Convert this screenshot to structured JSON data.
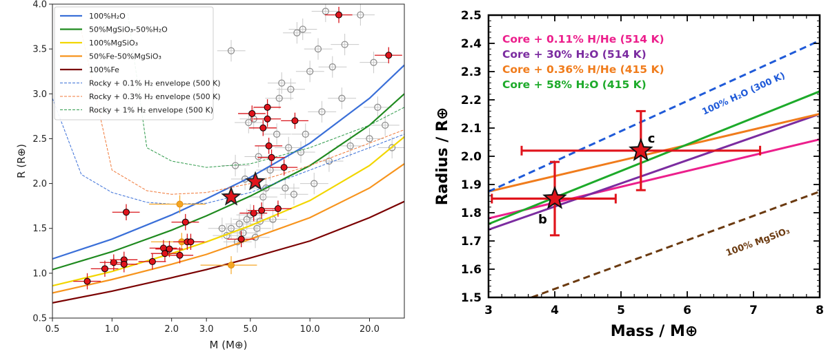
{
  "chart_data": [
    {
      "type": "scatter",
      "xscale": "log",
      "xlim": [
        0.5,
        30
      ],
      "ylim": [
        0.5,
        4.0
      ],
      "xlabel": "M (M⊕)",
      "ylabel": "R (R⊕)",
      "xticks": [
        0.5,
        1.0,
        2.0,
        3.0,
        5.0,
        10.0,
        20.0
      ],
      "xtick_labels": [
        "0.5",
        "1.0",
        "2.0",
        "3.0",
        "5.0",
        "10.0",
        "20.0"
      ],
      "yticks": [
        0.5,
        1.0,
        1.5,
        2.0,
        2.5,
        3.0,
        3.5,
        4.0
      ],
      "ytick_labels": [
        "0.5",
        "1.0",
        "1.5",
        "2.0",
        "2.5",
        "3.0",
        "3.5",
        "4.0"
      ],
      "legend_position": "top-left",
      "models": [
        {
          "name": "100%H₂O",
          "color": "#3a6fd8",
          "style": "solid",
          "x": [
            0.5,
            1,
            2,
            3,
            5,
            10,
            20,
            30
          ],
          "y": [
            1.16,
            1.38,
            1.65,
            1.83,
            2.07,
            2.45,
            2.95,
            3.32
          ]
        },
        {
          "name": "50%MgSiO₃-50%H₂O",
          "color": "#1f8a1f",
          "style": "solid",
          "x": [
            0.5,
            1,
            2,
            3,
            5,
            10,
            20,
            30
          ],
          "y": [
            1.04,
            1.24,
            1.48,
            1.64,
            1.86,
            2.2,
            2.65,
            3.0
          ]
        },
        {
          "name": "100%MgSiO₃",
          "color": "#f2d600",
          "style": "solid",
          "x": [
            0.5,
            1,
            2,
            3,
            5,
            10,
            20,
            30
          ],
          "y": [
            0.86,
            1.02,
            1.22,
            1.35,
            1.53,
            1.81,
            2.2,
            2.52
          ]
        },
        {
          "name": "50%Fe-50%MgSiO₃",
          "color": "#f7941d",
          "style": "solid",
          "x": [
            0.5,
            1,
            2,
            3,
            5,
            10,
            20,
            30
          ],
          "y": [
            0.78,
            0.93,
            1.1,
            1.21,
            1.38,
            1.62,
            1.95,
            2.22
          ]
        },
        {
          "name": "100%Fe",
          "color": "#7a0000",
          "style": "solid",
          "x": [
            0.5,
            1,
            2,
            3,
            5,
            10,
            20,
            30
          ],
          "y": [
            0.67,
            0.8,
            0.95,
            1.04,
            1.17,
            1.36,
            1.62,
            1.8
          ]
        },
        {
          "name": "Rocky + 0.1% H₂ envelope (500 K)",
          "color": "#3a6fd8",
          "style": "dashed",
          "x": [
            0.5,
            0.7,
            1.0,
            1.5,
            2.0,
            3.0,
            5.0,
            10,
            20,
            30
          ],
          "y": [
            2.95,
            2.1,
            1.9,
            1.79,
            1.77,
            1.78,
            1.9,
            2.15,
            2.4,
            2.55
          ]
        },
        {
          "name": "Rocky + 0.3% H₂ envelope (500 K)",
          "color": "#f07838",
          "style": "dashed",
          "x": [
            0.7,
            1.0,
            1.5,
            2.0,
            3.0,
            5.0,
            10,
            20,
            30
          ],
          "y": [
            3.7,
            2.15,
            1.92,
            1.88,
            1.9,
            2.0,
            2.2,
            2.45,
            2.6
          ]
        },
        {
          "name": "Rocky + 1% H₂ envelope (500 K)",
          "color": "#2e9a4a",
          "style": "dashed",
          "x": [
            1.2,
            1.5,
            2.0,
            3.0,
            5.0,
            10,
            20,
            30
          ],
          "y": [
            3.9,
            2.4,
            2.25,
            2.18,
            2.22,
            2.4,
            2.65,
            2.85
          ]
        }
      ],
      "planets_red": [
        {
          "m": 0.75,
          "r": 0.91
        },
        {
          "m": 0.92,
          "r": 1.05
        },
        {
          "m": 1.02,
          "r": 1.12
        },
        {
          "m": 1.15,
          "r": 1.15
        },
        {
          "m": 1.15,
          "r": 1.1
        },
        {
          "m": 1.18,
          "r": 1.68
        },
        {
          "m": 1.6,
          "r": 1.13
        },
        {
          "m": 1.82,
          "r": 1.28
        },
        {
          "m": 1.85,
          "r": 1.22
        },
        {
          "m": 1.95,
          "r": 1.27
        },
        {
          "m": 2.2,
          "r": 1.2
        },
        {
          "m": 2.35,
          "r": 1.57
        },
        {
          "m": 2.4,
          "r": 1.35
        },
        {
          "m": 2.5,
          "r": 1.35
        },
        {
          "m": 4.5,
          "r": 1.38
        },
        {
          "m": 5.1,
          "r": 2.78
        },
        {
          "m": 5.2,
          "r": 1.67
        },
        {
          "m": 5.7,
          "r": 1.7
        },
        {
          "m": 5.8,
          "r": 2.62
        },
        {
          "m": 6.1,
          "r": 2.85
        },
        {
          "m": 6.1,
          "r": 2.72
        },
        {
          "m": 6.2,
          "r": 2.42
        },
        {
          "m": 6.4,
          "r": 2.29
        },
        {
          "m": 6.9,
          "r": 1.72
        },
        {
          "m": 7.4,
          "r": 2.18
        },
        {
          "m": 8.4,
          "r": 2.7
        },
        {
          "m": 14.0,
          "r": 3.88
        },
        {
          "m": 25.0,
          "r": 3.43
        }
      ],
      "planets_orange": [
        {
          "m": 2.2,
          "r": 1.77
        },
        {
          "m": 2.25,
          "r": 1.35
        },
        {
          "m": 4.0,
          "r": 1.09
        }
      ],
      "planets_grey": [
        {
          "m": 4.0,
          "r": 3.48
        },
        {
          "m": 4.0,
          "r": 1.5
        },
        {
          "m": 4.2,
          "r": 2.2
        },
        {
          "m": 4.4,
          "r": 1.55
        },
        {
          "m": 4.6,
          "r": 1.45
        },
        {
          "m": 4.7,
          "r": 2.05
        },
        {
          "m": 4.8,
          "r": 1.6
        },
        {
          "m": 4.9,
          "r": 2.68
        },
        {
          "m": 5.0,
          "r": 1.65
        },
        {
          "m": 5.2,
          "r": 2.72
        },
        {
          "m": 5.4,
          "r": 1.5
        },
        {
          "m": 5.5,
          "r": 2.3
        },
        {
          "m": 5.6,
          "r": 1.58
        },
        {
          "m": 5.8,
          "r": 1.85
        },
        {
          "m": 6.0,
          "r": 1.95
        },
        {
          "m": 6.3,
          "r": 2.15
        },
        {
          "m": 6.5,
          "r": 1.6
        },
        {
          "m": 6.8,
          "r": 2.55
        },
        {
          "m": 7.0,
          "r": 2.95
        },
        {
          "m": 7.2,
          "r": 3.12
        },
        {
          "m": 7.5,
          "r": 1.95
        },
        {
          "m": 7.8,
          "r": 2.4
        },
        {
          "m": 8.0,
          "r": 3.05
        },
        {
          "m": 8.3,
          "r": 1.88
        },
        {
          "m": 8.6,
          "r": 3.68
        },
        {
          "m": 9.0,
          "r": 2.35
        },
        {
          "m": 9.2,
          "r": 3.72
        },
        {
          "m": 9.5,
          "r": 2.55
        },
        {
          "m": 10.0,
          "r": 3.25
        },
        {
          "m": 10.5,
          "r": 2.0
        },
        {
          "m": 11.0,
          "r": 3.5
        },
        {
          "m": 11.5,
          "r": 2.8
        },
        {
          "m": 12.0,
          "r": 3.92
        },
        {
          "m": 12.5,
          "r": 2.25
        },
        {
          "m": 13.0,
          "r": 3.3
        },
        {
          "m": 14.5,
          "r": 2.95
        },
        {
          "m": 15.0,
          "r": 3.55
        },
        {
          "m": 16.0,
          "r": 2.42
        },
        {
          "m": 18.0,
          "r": 3.88
        },
        {
          "m": 20.0,
          "r": 2.5
        },
        {
          "m": 21.0,
          "r": 3.35
        },
        {
          "m": 22.0,
          "r": 2.85
        },
        {
          "m": 24.0,
          "r": 2.65
        },
        {
          "m": 26.0,
          "r": 2.4
        },
        {
          "m": 3.6,
          "r": 1.5
        },
        {
          "m": 3.8,
          "r": 1.42
        },
        {
          "m": 4.3,
          "r": 1.35
        },
        {
          "m": 5.3,
          "r": 1.4
        }
      ],
      "stars": [
        {
          "m": 4.0,
          "r": 1.85
        },
        {
          "m": 5.3,
          "r": 2.02
        }
      ]
    },
    {
      "type": "line",
      "xlim": [
        3,
        8
      ],
      "ylim": [
        1.5,
        2.5
      ],
      "xlabel": "Mass / M⊕",
      "ylabel": "Radius / R⊕",
      "xticks": [
        3,
        4,
        5,
        6,
        7,
        8
      ],
      "xtick_labels": [
        "3",
        "4",
        "5",
        "6",
        "7",
        "8"
      ],
      "yticks": [
        1.5,
        1.6,
        1.7,
        1.8,
        1.9,
        2.0,
        2.1,
        2.2,
        2.3,
        2.4,
        2.5
      ],
      "ytick_labels": [
        "1.5",
        "1.6",
        "1.7",
        "1.8",
        "1.9",
        "2.0",
        "2.1",
        "2.2",
        "2.3",
        "2.4",
        "2.5"
      ],
      "legend_position": "top-left",
      "series": [
        {
          "name": "Core + 0.11% H/He (514 K)",
          "color": "#ec1f8c",
          "style": "solid",
          "x": [
            3,
            8
          ],
          "y": [
            1.78,
            2.06
          ]
        },
        {
          "name": "Core + 30% H₂O (514 K)",
          "color": "#7b2ca0",
          "style": "solid",
          "x": [
            3,
            8
          ],
          "y": [
            1.74,
            2.15
          ]
        },
        {
          "name": "Core + 0.36% H/He (415 K)",
          "color": "#f07c1c",
          "style": "solid",
          "x": [
            3,
            8
          ],
          "y": [
            1.875,
            2.15
          ]
        },
        {
          "name": "Core + 58% H₂O (415 K)",
          "color": "#1daa2a",
          "style": "solid",
          "x": [
            3,
            8
          ],
          "y": [
            1.76,
            2.23
          ]
        },
        {
          "name": "100% H₂O (300 K)",
          "color": "#1f5ad8",
          "style": "dashed",
          "x": [
            3,
            8
          ],
          "y": [
            1.875,
            2.41
          ]
        },
        {
          "name": "100% MgSiO₃",
          "color": "#6b3a10",
          "style": "dashed",
          "x": [
            3.65,
            8
          ],
          "y": [
            1.5,
            1.875
          ]
        }
      ],
      "planets": [
        {
          "label": "b",
          "m": 4.0,
          "r": 1.85,
          "m_lo": 3.05,
          "m_hi": 4.92,
          "r_lo": 1.72,
          "r_hi": 1.98
        },
        {
          "label": "c",
          "m": 5.3,
          "r": 2.02,
          "m_lo": 3.5,
          "m_hi": 7.1,
          "r_lo": 1.88,
          "r_hi": 2.16
        }
      ],
      "annotations": [
        {
          "text": "100% H₂O (300 K)",
          "color": "#1f5ad8"
        },
        {
          "text": "100% MgSiO₃",
          "color": "#6b3a10"
        }
      ]
    }
  ]
}
